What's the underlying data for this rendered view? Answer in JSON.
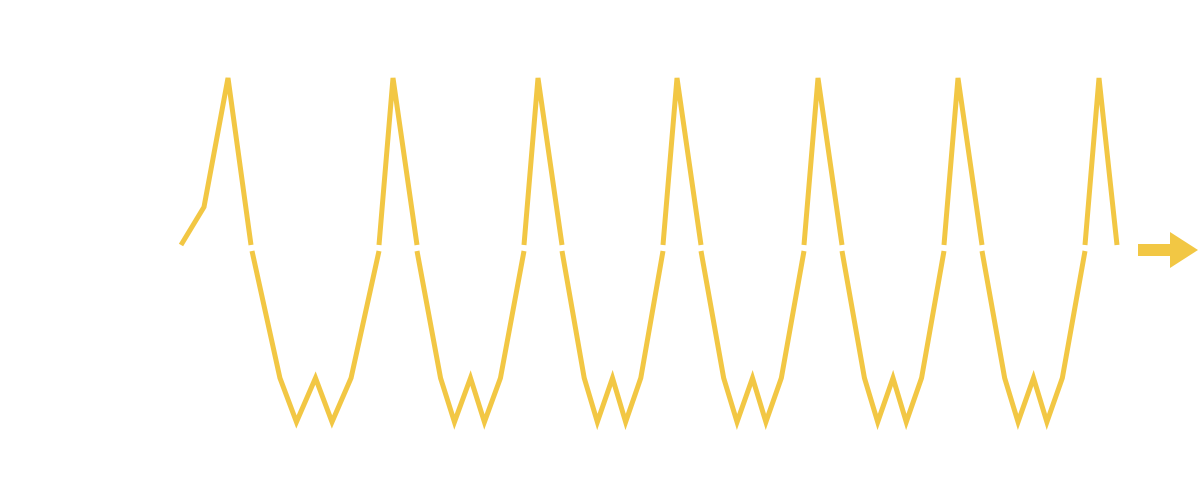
{
  "diagram": {
    "colors": {
      "background": "#ffffff",
      "waveform": "#f2c744",
      "arrow": "#f2c744"
    },
    "waveform": {
      "shape": "repeating sharp peak with a W-shaped trough",
      "cycles": 7,
      "baseline_break": true
    },
    "arrow": {
      "icon": "arrow-right-icon",
      "direction": "right"
    }
  }
}
